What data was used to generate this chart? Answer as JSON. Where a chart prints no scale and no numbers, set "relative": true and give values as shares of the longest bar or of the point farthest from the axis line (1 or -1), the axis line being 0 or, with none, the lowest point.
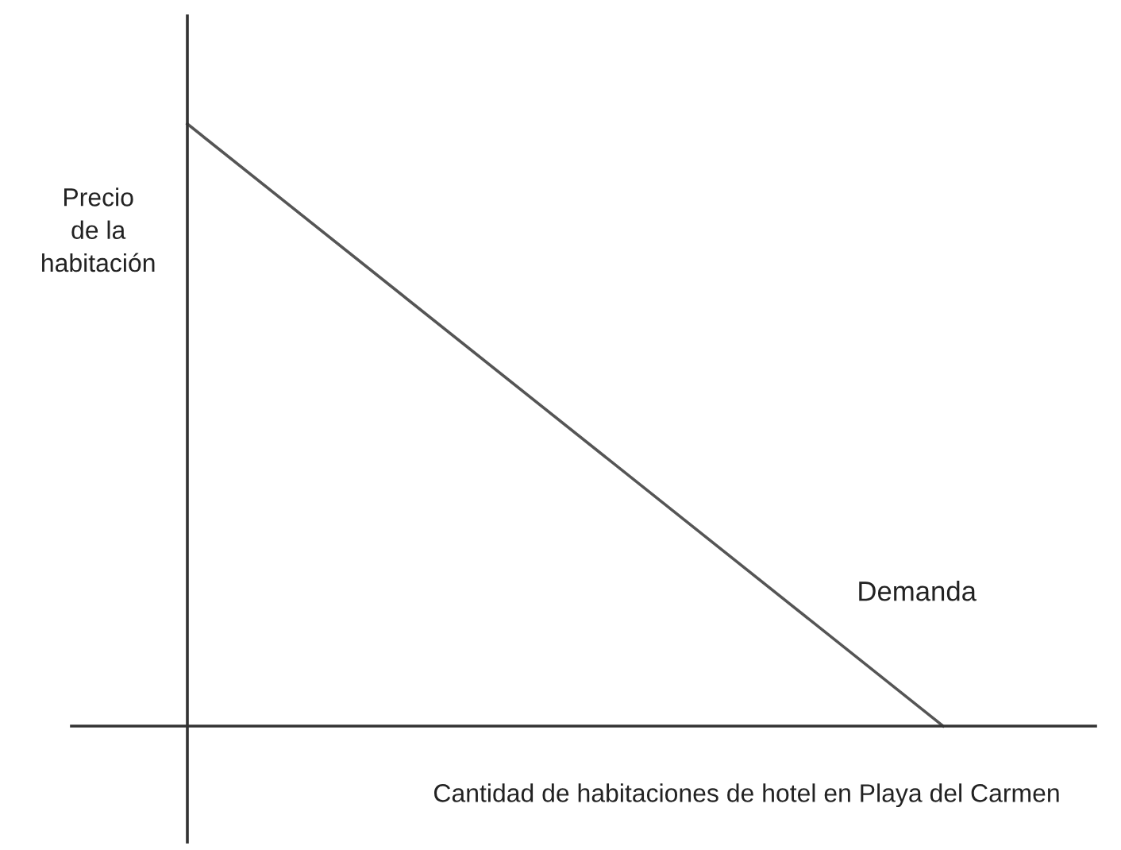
{
  "chart_data": {
    "type": "line",
    "relative": true,
    "ylabel": "Precio\nde la\nhabitación",
    "xlabel": "Cantidad de habitaciones de hotel en Playa del Carmen",
    "categories": [
      null,
      null
    ],
    "tick_labels": false,
    "legend": false,
    "marker": "none",
    "line_style": "solid",
    "series": [
      {
        "name": "Demanda",
        "color": "#555555",
        "values": [
          1,
          0
        ]
      }
    ]
  }
}
